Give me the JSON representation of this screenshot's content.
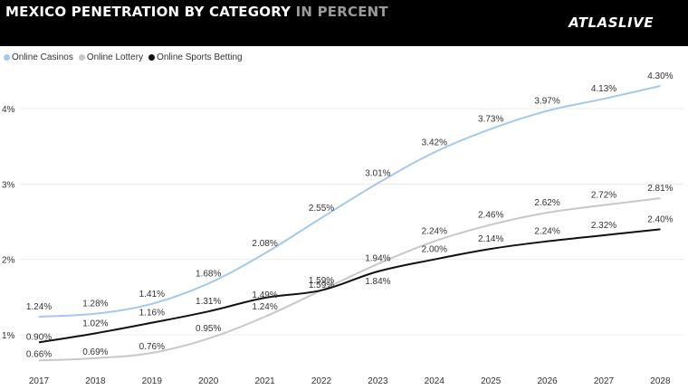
{
  "header": {
    "title_main": "MEXICO PENETRATION BY CATEGORY",
    "title_sub": "IN PERCENT",
    "logo_text": "ATLASLIVE"
  },
  "chart_data": {
    "type": "line",
    "title": "MEXICO PENETRATION BY CATEGORY IN PERCENT",
    "x": [
      "2017",
      "2018",
      "2019",
      "2020",
      "2021",
      "2022",
      "2023",
      "2024",
      "2025",
      "2026",
      "2027",
      "2028"
    ],
    "ylim": [
      0.6,
      4.5
    ],
    "yticks": [
      1,
      2,
      3,
      4
    ],
    "ytick_labels": [
      "1%",
      "2%",
      "3%",
      "4%"
    ],
    "grid": true,
    "legend_position": "top-left",
    "series": [
      {
        "name": "Online Casinos",
        "color": "#a6c8ec",
        "values": [
          1.24,
          1.28,
          1.41,
          1.68,
          2.08,
          2.55,
          3.01,
          3.42,
          3.73,
          3.97,
          4.13,
          4.3
        ],
        "labels": [
          "1.24%",
          "1.28%",
          "1.41%",
          "1.68%",
          "2.08%",
          "2.55%",
          "3.01%",
          "3.42%",
          "3.73%",
          "3.97%",
          "4.13%",
          "4.30%"
        ]
      },
      {
        "name": "Online Lottery",
        "color": "#c8c8c8",
        "values": [
          0.66,
          0.69,
          0.76,
          0.95,
          1.24,
          1.59,
          1.94,
          2.24,
          2.46,
          2.62,
          2.72,
          2.81
        ],
        "labels": [
          "0.66%",
          "0.69%",
          "0.76%",
          "0.95%",
          "1.24%",
          "1.59%",
          "1.94%",
          "2.24%",
          "2.46%",
          "2.62%",
          "2.72%",
          "2.81%"
        ]
      },
      {
        "name": "Online Sports Betting",
        "color": "#111111",
        "values": [
          0.9,
          1.02,
          1.16,
          1.31,
          1.49,
          1.59,
          1.84,
          2.0,
          2.14,
          2.24,
          2.32,
          2.4
        ],
        "labels": [
          "0.90%",
          "1.02%",
          "1.16%",
          "1.31%",
          "1.49%",
          "1.59%",
          "1.84%",
          "2.00%",
          "2.14%",
          "2.24%",
          "2.32%",
          "2.40%"
        ]
      }
    ]
  }
}
